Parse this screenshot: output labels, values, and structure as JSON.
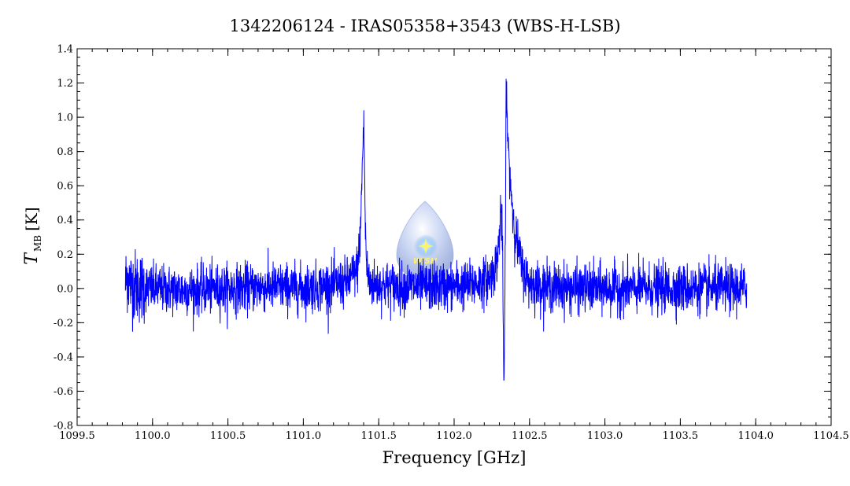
{
  "chart_data": {
    "type": "line",
    "title": "1342206124 - IRAS05358+3543 (WBS-H-LSB)",
    "xlabel": "Frequency [GHz]",
    "ylabel": {
      "main": "T",
      "sub": "MB",
      "unit": "[K]"
    },
    "xlim": [
      1099.5,
      1104.5
    ],
    "ylim": [
      -0.8,
      1.4
    ],
    "x_ticks": [
      1099.5,
      1100.0,
      1100.5,
      1101.0,
      1101.5,
      1102.0,
      1102.5,
      1103.0,
      1103.5,
      1104.0,
      1104.5
    ],
    "x_tick_labels": [
      "1099.5",
      "1100.0",
      "1100.5",
      "1101.0",
      "1101.5",
      "1102.0",
      "1102.5",
      "1103.0",
      "1103.5",
      "1104.0",
      "1104.5"
    ],
    "y_ticks": [
      -0.8,
      -0.6,
      -0.4,
      -0.2,
      0.0,
      0.2,
      0.4,
      0.6,
      0.8,
      1.0,
      1.2,
      1.4
    ],
    "y_tick_labels": [
      "-0.8",
      "-0.6",
      "-0.4",
      "-0.2",
      "0.0",
      "0.2",
      "0.4",
      "0.6",
      "0.8",
      "1.0",
      "1.2",
      "1.4"
    ],
    "grid": false,
    "series": [
      {
        "color": "#0000ff",
        "x": [
          1099.82,
          1099.83,
          1099.85,
          1099.9,
          1100.0,
          1100.2,
          1100.5,
          1100.8,
          1101.0,
          1101.2,
          1101.3,
          1101.36,
          1101.38,
          1101.39,
          1101.4,
          1101.405,
          1101.41,
          1101.42,
          1101.44,
          1101.5,
          1101.7,
          1101.9,
          1102.1,
          1102.2,
          1102.25,
          1102.28,
          1102.3,
          1102.31,
          1102.32,
          1102.33,
          1102.34,
          1102.345,
          1102.35,
          1102.36,
          1102.38,
          1102.4,
          1102.45,
          1102.5,
          1102.6,
          1102.8,
          1103.0,
          1103.2,
          1103.5,
          1103.8,
          1103.94
        ],
        "y": [
          0.02,
          0.08,
          0.03,
          0.01,
          0.0,
          -0.01,
          0.0,
          0.01,
          0.0,
          0.02,
          0.04,
          0.12,
          0.35,
          0.7,
          0.95,
          0.8,
          0.4,
          0.12,
          0.03,
          0.02,
          0.01,
          0.01,
          0.02,
          0.04,
          0.08,
          0.14,
          0.3,
          0.48,
          0.3,
          -0.6,
          0.2,
          1.25,
          1.05,
          0.78,
          0.55,
          0.35,
          0.12,
          0.03,
          0.01,
          0.0,
          0.0,
          0.0,
          0.0,
          0.0,
          0.0
        ],
        "noise_rms": 0.07
      }
    ],
    "annotations": [
      {
        "type": "logo",
        "text": "WISH"
      }
    ]
  }
}
